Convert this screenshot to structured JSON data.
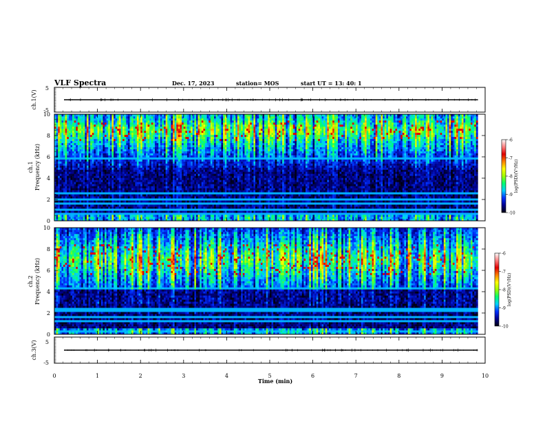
{
  "header": {
    "title": "VLF Spectra",
    "date": "Dec. 17, 2023",
    "station": "station= MOS",
    "start": "start  UT  =   13: 40: 1"
  },
  "chart_data": [
    {
      "id": "ch1_wave",
      "type": "line",
      "ylabel": "ch.1(V)",
      "ylim": [
        -5,
        5
      ],
      "yticks": [
        "5",
        "-5"
      ],
      "level": 0
    },
    {
      "id": "ch1_spec",
      "type": "heatmap",
      "ylabel_top": "ch.1",
      "ylabel": "Frequency (kHz)",
      "ylim": [
        0,
        10
      ],
      "yticks": [
        "0",
        "2",
        "4",
        "6",
        "8",
        "10"
      ],
      "band_khz": [
        7.5,
        9.5
      ],
      "colorbar": {
        "label": "log(PSD)(V²/Hz)",
        "ticks": [
          "-6",
          "-7",
          "-8",
          "-9",
          "-10"
        ],
        "range": [
          -10,
          -6
        ]
      }
    },
    {
      "id": "ch2_spec",
      "type": "heatmap",
      "ylabel_top": "ch.2",
      "ylabel": "Frequency (kHz)",
      "ylim": [
        0,
        10
      ],
      "yticks": [
        "0",
        "2",
        "4",
        "6",
        "8",
        "10"
      ],
      "band_khz": [
        5.5,
        8.5
      ],
      "colorbar": {
        "label": "log(PSD)(V²/Hz)",
        "ticks": [
          "-6",
          "-7",
          "-8",
          "-9",
          "-10"
        ],
        "range": [
          -10,
          -6
        ]
      }
    },
    {
      "id": "ch3_wave",
      "type": "line",
      "ylabel": "ch.3(V)",
      "ylim": [
        -5,
        5
      ],
      "yticks": [
        "5",
        "-5"
      ],
      "level": 0
    }
  ],
  "x_axis": {
    "label": "Time  (min)",
    "xlim": [
      0,
      10
    ],
    "ticks": [
      "0",
      "1",
      "2",
      "3",
      "4",
      "5",
      "6",
      "7",
      "8",
      "9",
      "10"
    ],
    "data_end_min": 9.83
  },
  "colors": {
    "background": "#000000",
    "frame": "#000000",
    "colormap": [
      "#000010",
      "#00008c",
      "#0030ff",
      "#00d0ff",
      "#00ff70",
      "#a0ff00",
      "#ffff00",
      "#ff8000",
      "#e00000",
      "#ff8080",
      "#ffffff"
    ]
  }
}
